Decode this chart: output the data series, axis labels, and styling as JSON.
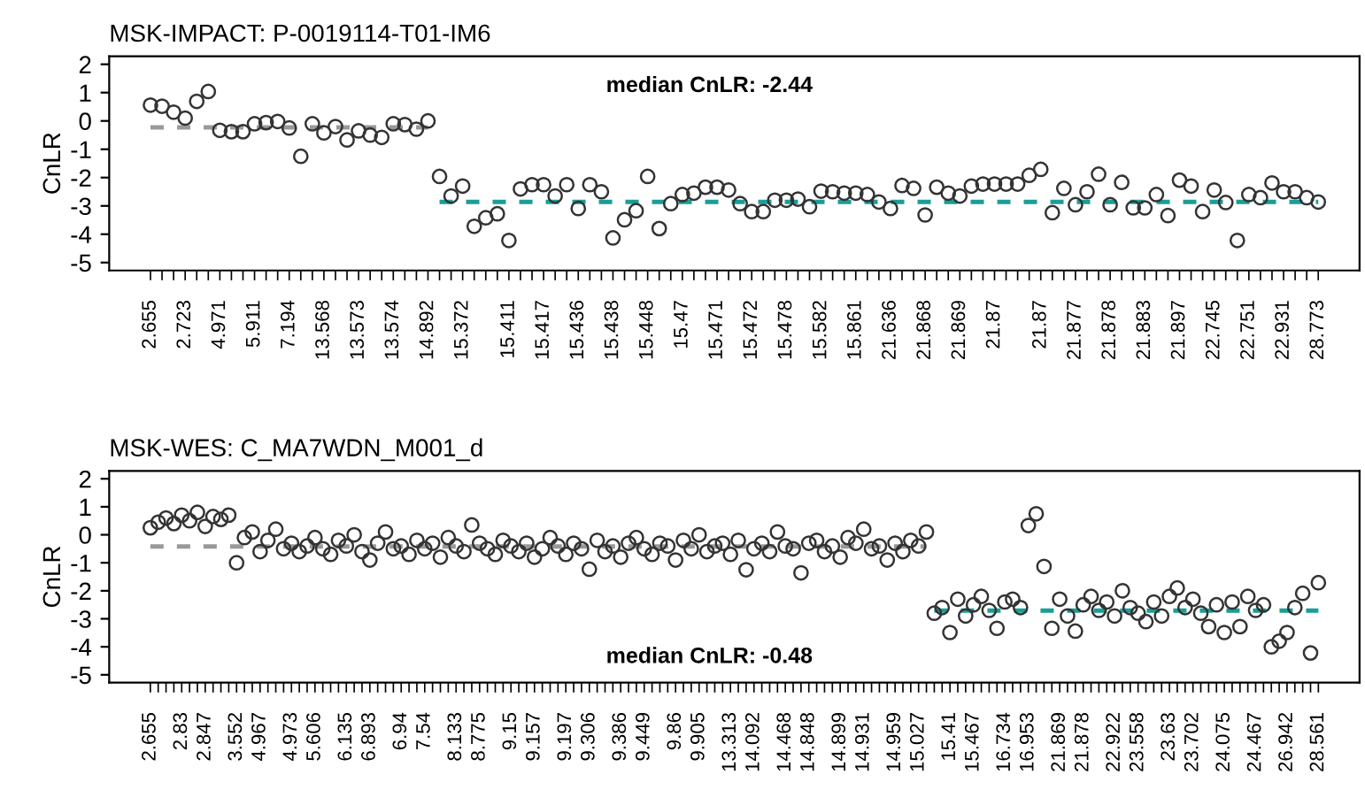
{
  "chart_data": [
    {
      "type": "scatter",
      "title": "MSK-IMPACT: P-0019114-T01-IM6",
      "ylabel": "CnLR",
      "annotations": [
        "median CnLR: -2.44"
      ],
      "categories": [
        "2.655",
        null,
        null,
        "2.723",
        null,
        null,
        "4.971",
        null,
        null,
        "5.911",
        null,
        null,
        "7.194",
        null,
        null,
        "13.568",
        null,
        null,
        "13.573",
        null,
        null,
        "13.574",
        null,
        null,
        "14.892",
        null,
        null,
        "15.372",
        null,
        null,
        null,
        "15.411",
        null,
        null,
        "15.417",
        null,
        null,
        "15.436",
        null,
        null,
        "15.438",
        null,
        null,
        "15.448",
        null,
        null,
        "15.47",
        null,
        null,
        "15.471",
        null,
        null,
        "15.472",
        null,
        null,
        "15.478",
        null,
        null,
        "15.582",
        null,
        null,
        "15.861",
        null,
        null,
        "21.636",
        null,
        null,
        "21.868",
        null,
        null,
        "21.869",
        null,
        null,
        "21.87",
        null,
        null,
        null,
        "21.87",
        null,
        null,
        "21.877",
        null,
        null,
        "21.878",
        null,
        null,
        "21.883",
        null,
        null,
        "21.897",
        null,
        null,
        "22.745",
        null,
        null,
        "22.751",
        null,
        null,
        "22.931",
        null,
        null,
        "28.773"
      ],
      "ylim": [
        -5.28,
        2.28
      ],
      "yticks": [
        -5,
        -4,
        -3,
        -2,
        -1,
        0,
        1,
        2
      ],
      "grid": false,
      "legend": false,
      "series": [
        {
          "marker": "circle",
          "color": "#333333",
          "values": [
            0.56,
            0.52,
            0.31,
            0.1,
            0.69,
            1.04,
            -0.33,
            -0.38,
            -0.38,
            -0.1,
            -0.06,
            -0.02,
            -0.25,
            -1.25,
            -0.1,
            -0.42,
            -0.2,
            -0.67,
            -0.35,
            -0.5,
            -0.58,
            -0.1,
            -0.13,
            -0.29,
            0.0,
            -1.96,
            -2.65,
            -2.3,
            -3.72,
            -3.42,
            -3.28,
            -4.22,
            -2.4,
            -2.25,
            -2.25,
            -2.65,
            -2.25,
            -3.09,
            -2.25,
            -2.5,
            -4.13,
            -3.49,
            -3.17,
            -1.96,
            -3.8,
            -2.92,
            -2.6,
            -2.55,
            -2.34,
            -2.34,
            -2.44,
            -2.92,
            -3.2,
            -3.2,
            -2.8,
            -2.8,
            -2.76,
            -3.03,
            -2.48,
            -2.5,
            -2.55,
            -2.55,
            -2.6,
            -2.86,
            -3.09,
            -2.28,
            -2.38,
            -3.32,
            -2.34,
            -2.55,
            -2.65,
            -2.3,
            -2.23,
            -2.23,
            -2.23,
            -2.23,
            -1.92,
            -1.71,
            -3.24,
            -2.38,
            -2.96,
            -2.5,
            -1.88,
            -2.96,
            -2.17,
            -3.07,
            -3.07,
            -2.6,
            -3.34,
            -2.09,
            -2.3,
            -3.2,
            -2.44,
            -2.88,
            -4.22,
            -2.6,
            -2.71,
            -2.19,
            -2.5,
            -2.5,
            -2.71,
            -2.86
          ]
        },
        {
          "type": "line",
          "line_style": "dashed",
          "color": "#999999",
          "values": [
            -0.23,
            -0.23,
            -0.23,
            -0.23,
            -0.23,
            -0.23,
            -0.23,
            -0.23,
            -0.23,
            -0.23,
            -0.23,
            -0.23,
            -0.23,
            -0.23,
            -0.23,
            -0.23,
            -0.23,
            -0.23,
            -0.23,
            -0.23,
            -0.23,
            -0.23,
            -0.23,
            -0.23,
            -0.23,
            null,
            null,
            null,
            null,
            null,
            null,
            null,
            null,
            null,
            null,
            null,
            null,
            null,
            null,
            null,
            null,
            null,
            null,
            null,
            null,
            null,
            null,
            null,
            null,
            null,
            null,
            null,
            null,
            null,
            null,
            null,
            null,
            null,
            null,
            null,
            null,
            null,
            null,
            null,
            null,
            null,
            null,
            null,
            null,
            null,
            null,
            null,
            null,
            null,
            null,
            null,
            null,
            null,
            null,
            null,
            null,
            null,
            null,
            null,
            null,
            null,
            null,
            null,
            null,
            null,
            null,
            null,
            null,
            null,
            null,
            null,
            null,
            null,
            null,
            null,
            null,
            null
          ]
        },
        {
          "type": "line",
          "line_style": "dashed",
          "color": "#1a9e96",
          "values": [
            null,
            null,
            null,
            null,
            null,
            null,
            null,
            null,
            null,
            null,
            null,
            null,
            null,
            null,
            null,
            null,
            null,
            null,
            null,
            null,
            null,
            null,
            null,
            null,
            null,
            -2.86,
            -2.86,
            -2.86,
            -2.86,
            -2.86,
            -2.86,
            -2.86,
            -2.86,
            -2.86,
            -2.86,
            -2.86,
            -2.86,
            -2.86,
            -2.86,
            -2.86,
            -2.86,
            -2.86,
            -2.86,
            -2.86,
            -2.86,
            -2.86,
            -2.86,
            -2.86,
            -2.86,
            -2.86,
            -2.86,
            -2.86,
            -2.86,
            -2.86,
            -2.86,
            -2.86,
            -2.86,
            -2.86,
            -2.86,
            -2.86,
            -2.86,
            -2.86,
            -2.86,
            -2.86,
            -2.86,
            -2.86,
            -2.86,
            -2.86,
            -2.86,
            -2.86,
            -2.86,
            -2.86,
            -2.86,
            -2.86,
            -2.86,
            -2.86,
            -2.86,
            -2.86,
            -2.86,
            -2.86,
            -2.86,
            -2.86,
            -2.86,
            -2.86,
            -2.86,
            -2.86,
            -2.86,
            -2.86,
            -2.86,
            -2.86,
            -2.86,
            -2.86,
            -2.86,
            -2.86,
            -2.86,
            -2.86,
            -2.86,
            -2.86,
            -2.86,
            -2.86,
            -2.86,
            -2.86
          ]
        }
      ]
    },
    {
      "type": "scatter",
      "title": "MSK-WES: C_MA7WDN_M001_d",
      "ylabel": "CnLR",
      "annotations": [
        "median CnLR: -0.48"
      ],
      "categories": [
        "2.655",
        null,
        null,
        null,
        "2.83",
        null,
        null,
        "2.847",
        null,
        null,
        null,
        "3.552",
        null,
        null,
        "4.967",
        null,
        null,
        null,
        "4.973",
        null,
        null,
        "5.606",
        null,
        null,
        null,
        "6.135",
        null,
        null,
        "6.893",
        null,
        null,
        null,
        "6.94",
        null,
        null,
        "7.54",
        null,
        null,
        null,
        "8.133",
        null,
        null,
        "8.775",
        null,
        null,
        null,
        "9.15",
        null,
        null,
        "9.157",
        null,
        null,
        null,
        "9.197",
        null,
        null,
        "9.306",
        null,
        null,
        null,
        "9.386",
        null,
        null,
        "9.449",
        null,
        null,
        null,
        "9.86",
        null,
        null,
        "9.905",
        null,
        null,
        null,
        "13.313",
        null,
        null,
        "14.092",
        null,
        null,
        null,
        "14.468",
        null,
        null,
        "14.848",
        null,
        null,
        null,
        "14.899",
        null,
        null,
        "14.931",
        null,
        null,
        null,
        "14.959",
        null,
        null,
        "15.027",
        null,
        null,
        null,
        "15.41",
        null,
        null,
        "15.467",
        null,
        null,
        null,
        "16.734",
        null,
        null,
        "16.953",
        null,
        null,
        null,
        "21.869",
        null,
        null,
        "21.878",
        null,
        null,
        null,
        "22.922",
        null,
        null,
        "23.558",
        null,
        null,
        null,
        "23.63",
        null,
        null,
        "23.702",
        null,
        null,
        null,
        "24.075",
        null,
        null,
        null,
        "24.467",
        null,
        null,
        null,
        "26.942",
        null,
        null,
        null,
        "28.561"
      ],
      "ylim": [
        -5.28,
        2.28
      ],
      "yticks": [
        -5,
        -4,
        -3,
        -2,
        -1,
        0,
        1,
        2
      ],
      "grid": false,
      "legend": false,
      "series": [
        {
          "marker": "circle",
          "color": "#333333",
          "values": [
            0.25,
            0.45,
            0.6,
            0.4,
            0.7,
            0.5,
            0.8,
            0.3,
            0.65,
            0.55,
            0.7,
            -1.0,
            -0.1,
            0.1,
            -0.6,
            -0.2,
            0.2,
            -0.5,
            -0.3,
            -0.6,
            -0.4,
            -0.1,
            -0.5,
            -0.7,
            -0.2,
            -0.4,
            0.0,
            -0.6,
            -0.9,
            -0.3,
            0.1,
            -0.5,
            -0.4,
            -0.7,
            -0.2,
            -0.5,
            -0.3,
            -0.8,
            -0.1,
            -0.4,
            -0.6,
            0.35,
            -0.3,
            -0.5,
            -0.7,
            -0.2,
            -0.4,
            -0.6,
            -0.3,
            -0.8,
            -0.5,
            -0.1,
            -0.4,
            -0.7,
            -0.3,
            -0.5,
            -1.23,
            -0.2,
            -0.6,
            -0.4,
            -0.8,
            -0.3,
            -0.1,
            -0.5,
            -0.7,
            -0.3,
            -0.4,
            -0.9,
            -0.2,
            -0.5,
            0.0,
            -0.6,
            -0.4,
            -0.3,
            -0.7,
            -0.2,
            -1.25,
            -0.5,
            -0.3,
            -0.6,
            0.1,
            -0.4,
            -0.5,
            -1.36,
            -0.3,
            -0.2,
            -0.6,
            -0.4,
            -0.8,
            -0.1,
            -0.3,
            0.2,
            -0.5,
            -0.4,
            -0.9,
            -0.3,
            -0.6,
            -0.2,
            -0.4,
            0.1,
            -2.8,
            -2.6,
            -3.49,
            -2.3,
            -2.9,
            -2.5,
            -2.2,
            -2.7,
            -3.34,
            -2.4,
            -2.3,
            -2.6,
            0.33,
            0.75,
            -1.13,
            -3.34,
            -2.3,
            -2.9,
            -3.44,
            -2.5,
            -2.2,
            -2.7,
            -2.4,
            -2.9,
            -2.0,
            -2.6,
            -2.8,
            -3.1,
            -2.4,
            -2.9,
            -2.2,
            -1.9,
            -2.6,
            -2.3,
            -2.8,
            -3.28,
            -2.5,
            -3.49,
            -2.4,
            -3.28,
            -2.2,
            -2.7,
            -2.5,
            -4.0,
            -3.8,
            -3.49,
            -2.6,
            -2.09,
            -4.22,
            -1.71
          ]
        },
        {
          "type": "line",
          "line_style": "dashed",
          "color": "#999999",
          "values": [
            -0.42,
            -0.42,
            -0.42,
            -0.42,
            -0.42,
            -0.42,
            -0.42,
            -0.42,
            -0.42,
            -0.42,
            -0.42,
            -0.42,
            -0.42,
            -0.42,
            -0.42,
            -0.42,
            -0.42,
            -0.42,
            -0.42,
            -0.42,
            -0.42,
            -0.42,
            -0.42,
            -0.42,
            -0.42,
            -0.42,
            -0.42,
            -0.42,
            -0.42,
            -0.42,
            -0.42,
            -0.42,
            -0.42,
            -0.42,
            -0.42,
            -0.42,
            -0.42,
            -0.42,
            -0.42,
            -0.42,
            -0.42,
            -0.42,
            -0.42,
            -0.42,
            -0.42,
            -0.42,
            -0.42,
            -0.42,
            -0.42,
            -0.42,
            -0.42,
            -0.42,
            -0.42,
            -0.42,
            -0.42,
            -0.42,
            -0.42,
            -0.42,
            -0.42,
            -0.42,
            -0.42,
            -0.42,
            -0.42,
            -0.42,
            -0.42,
            -0.42,
            -0.42,
            -0.42,
            -0.42,
            -0.42,
            -0.42,
            -0.42,
            -0.42,
            -0.42,
            -0.42,
            -0.42,
            -0.42,
            -0.42,
            -0.42,
            -0.42,
            -0.42,
            -0.42,
            -0.42,
            -0.42,
            -0.42,
            -0.42,
            -0.42,
            -0.42,
            -0.42,
            -0.42,
            -0.42,
            -0.42,
            -0.42,
            -0.42,
            -0.42,
            -0.42,
            -0.42,
            -0.42,
            -0.42,
            -0.42,
            null,
            null,
            null,
            null,
            null,
            null,
            null,
            null,
            null,
            null,
            null,
            null,
            null,
            null,
            null,
            null,
            null,
            null,
            null,
            null,
            null,
            null,
            null,
            null,
            null,
            null,
            null,
            null,
            null,
            null,
            null,
            null,
            null,
            null,
            null,
            null,
            null,
            null,
            null,
            null,
            null,
            null,
            null,
            null,
            null,
            null,
            null,
            null,
            null,
            null
          ]
        },
        {
          "type": "line",
          "line_style": "dashed",
          "color": "#1a9e96",
          "values": [
            null,
            null,
            null,
            null,
            null,
            null,
            null,
            null,
            null,
            null,
            null,
            null,
            null,
            null,
            null,
            null,
            null,
            null,
            null,
            null,
            null,
            null,
            null,
            null,
            null,
            null,
            null,
            null,
            null,
            null,
            null,
            null,
            null,
            null,
            null,
            null,
            null,
            null,
            null,
            null,
            null,
            null,
            null,
            null,
            null,
            null,
            null,
            null,
            null,
            null,
            null,
            null,
            null,
            null,
            null,
            null,
            null,
            null,
            null,
            null,
            null,
            null,
            null,
            null,
            null,
            null,
            null,
            null,
            null,
            null,
            null,
            null,
            null,
            null,
            null,
            null,
            null,
            null,
            null,
            null,
            null,
            null,
            null,
            null,
            null,
            null,
            null,
            null,
            null,
            null,
            null,
            null,
            null,
            null,
            null,
            null,
            null,
            null,
            null,
            null,
            -2.71,
            -2.71,
            -2.71,
            -2.71,
            -2.71,
            -2.71,
            -2.71,
            -2.71,
            -2.71,
            -2.71,
            -2.71,
            -2.71,
            -2.71,
            -2.71,
            -2.71,
            -2.71,
            -2.71,
            -2.71,
            -2.71,
            -2.71,
            -2.71,
            -2.71,
            -2.71,
            -2.71,
            -2.71,
            -2.71,
            -2.71,
            -2.71,
            -2.71,
            -2.71,
            -2.71,
            -2.71,
            -2.71,
            -2.71,
            -2.71,
            -2.71,
            -2.71,
            -2.71,
            -2.71,
            -2.71,
            -2.71,
            -2.71,
            -2.71,
            -2.71,
            -2.71,
            -2.71,
            -2.71,
            -2.71,
            -2.71,
            -2.71
          ]
        }
      ]
    }
  ]
}
